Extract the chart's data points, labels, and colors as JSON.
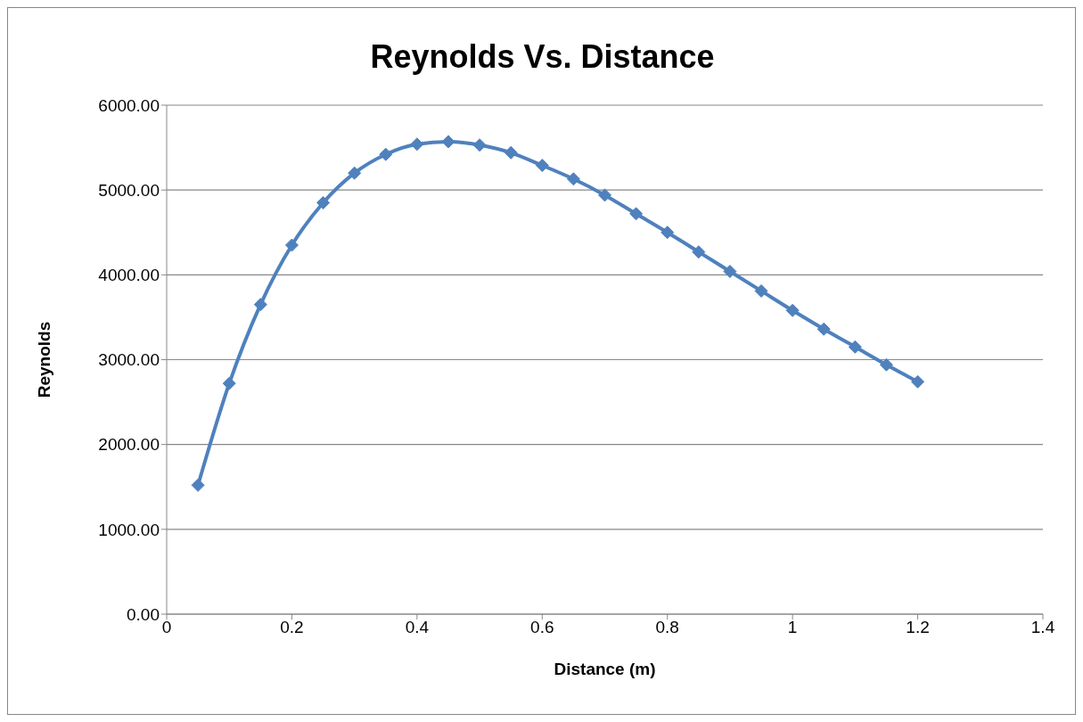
{
  "chart_data": {
    "type": "line",
    "title": "Reynolds Vs. Distance",
    "xlabel": "Distance (m)",
    "ylabel": "Reynolds",
    "x": [
      0.05,
      0.1,
      0.15,
      0.2,
      0.25,
      0.3,
      0.35,
      0.4,
      0.45,
      0.5,
      0.55,
      0.6,
      0.65,
      0.7,
      0.75,
      0.8,
      0.85,
      0.9,
      0.95,
      1.0,
      1.05,
      1.1,
      1.15,
      1.2
    ],
    "series": [
      {
        "color": "#4f81bd",
        "values": [
          1520,
          2720,
          3650,
          4350,
          4850,
          5200,
          5420,
          5540,
          5570,
          5530,
          5440,
          5290,
          5130,
          4940,
          4720,
          4500,
          4270,
          4040,
          3810,
          3580,
          3360,
          3150,
          2940,
          2740
        ]
      }
    ],
    "xlim": [
      0,
      1.4
    ],
    "xticks": [
      0,
      0.2,
      0.4,
      0.6,
      0.8,
      1,
      1.2,
      1.4
    ],
    "ylim": [
      0,
      6000
    ],
    "yticks": [
      {
        "value": 0,
        "label": "0.00"
      },
      {
        "value": 1000,
        "label": "1000.00"
      },
      {
        "value": 2000,
        "label": "2000.00"
      },
      {
        "value": 3000,
        "label": "3000.00"
      },
      {
        "value": 4000,
        "label": "4000.00"
      },
      {
        "value": 5000,
        "label": "5000.00"
      },
      {
        "value": 6000,
        "label": "6000.00"
      }
    ],
    "grid": "y",
    "legend": false,
    "marker": "diamond",
    "line_style": "solid"
  }
}
